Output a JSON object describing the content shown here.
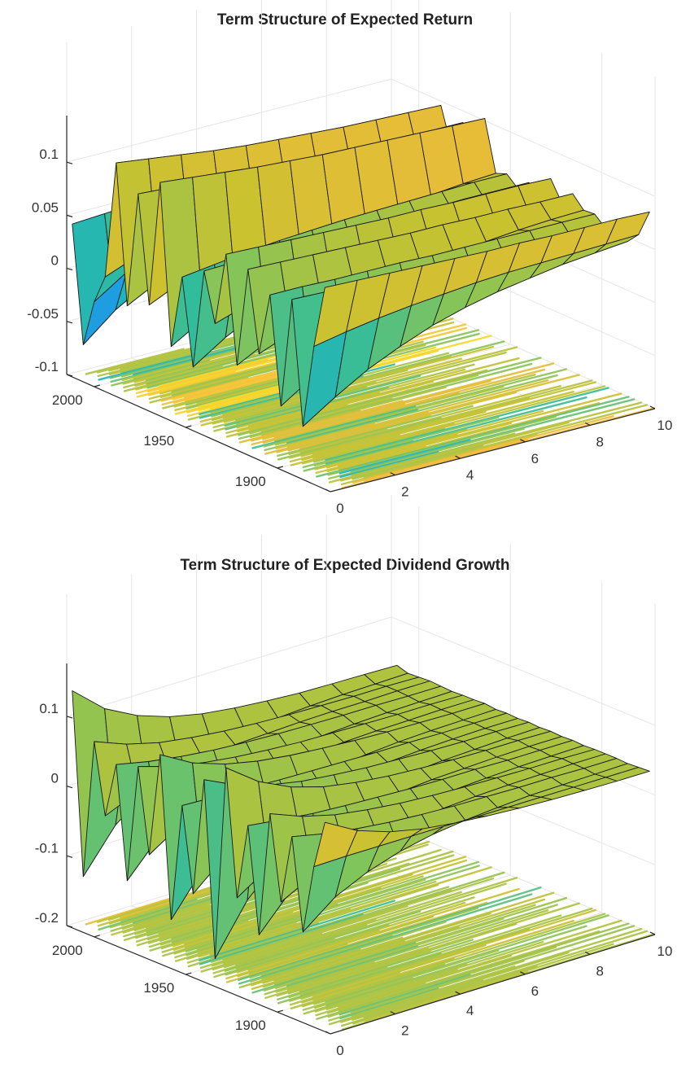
{
  "colormap": [
    "#3e26a8",
    "#4743f8",
    "#2f84f6",
    "#14b0d2",
    "#32bc9b",
    "#83c45a",
    "#c8c22f",
    "#f5ba3c",
    "#f6e11d",
    "#f9fb15"
  ],
  "chart_data": [
    {
      "type": "surface3d",
      "title": "Term Structure of Expected Return",
      "xlabel": "",
      "ylabel": "",
      "zlabel": "",
      "x_ticks": [
        "0",
        "2",
        "4",
        "6",
        "8",
        "10"
      ],
      "y_ticks": [
        "1900",
        "1950",
        "2000"
      ],
      "z_ticks": [
        "-0.1",
        "-0.05",
        "0",
        "0.05",
        "0.1"
      ],
      "xlim": [
        0,
        10
      ],
      "ylim": [
        1871,
        2015
      ],
      "zlim": [
        -0.1,
        0.14
      ],
      "grid": true,
      "projection_floor": true,
      "series": [
        {
          "y": 2012,
          "values": [
            0.044,
            0.046,
            0.048,
            0.05,
            0.051,
            0.052,
            0.053,
            0.054,
            0.054,
            0.055,
            0.055
          ]
        },
        {
          "y": 2006,
          "values": [
            -0.065,
            -0.04,
            -0.022,
            -0.008,
            0.004,
            0.014,
            0.022,
            0.028,
            0.034,
            0.038,
            0.042
          ]
        },
        {
          "y": 2000,
          "values": [
            -0.02,
            0.0,
            0.015,
            0.027,
            0.036,
            0.043,
            0.048,
            0.052,
            0.055,
            0.057,
            0.059
          ]
        },
        {
          "y": 1994,
          "values": [
            0.008,
            0.02,
            0.03,
            0.037,
            0.043,
            0.048,
            0.051,
            0.054,
            0.056,
            0.058,
            0.06
          ]
        },
        {
          "y": 1988,
          "values": [
            0.12,
            0.116,
            0.112,
            0.108,
            0.105,
            0.103,
            0.101,
            0.099,
            0.098,
            0.097,
            0.096
          ]
        },
        {
          "y": 1982,
          "values": [
            -0.01,
            0.006,
            0.02,
            0.03,
            0.038,
            0.044,
            0.049,
            0.053,
            0.056,
            0.058,
            0.06
          ]
        },
        {
          "y": 1976,
          "values": [
            0.1,
            0.098,
            0.096,
            0.094,
            0.093,
            0.092,
            0.091,
            0.09,
            0.09,
            0.089,
            0.089
          ]
        },
        {
          "y": 1970,
          "values": [
            0.0,
            0.014,
            0.026,
            0.035,
            0.042,
            0.047,
            0.051,
            0.054,
            0.057,
            0.059,
            0.061
          ]
        },
        {
          "y": 1964,
          "values": [
            0.12,
            0.117,
            0.114,
            0.111,
            0.109,
            0.107,
            0.106,
            0.105,
            0.104,
            0.103,
            0.102
          ]
        },
        {
          "y": 1958,
          "values": [
            -0.03,
            -0.012,
            0.004,
            0.017,
            0.027,
            0.035,
            0.041,
            0.046,
            0.05,
            0.053,
            0.055
          ]
        },
        {
          "y": 1952,
          "values": [
            0.04,
            0.044,
            0.048,
            0.051,
            0.053,
            0.055,
            0.056,
            0.057,
            0.058,
            0.059,
            0.059
          ]
        },
        {
          "y": 1946,
          "values": [
            -0.04,
            -0.02,
            -0.004,
            0.009,
            0.02,
            0.028,
            0.035,
            0.04,
            0.044,
            0.047,
            0.05
          ]
        },
        {
          "y": 1940,
          "values": [
            0.055,
            0.056,
            0.057,
            0.058,
            0.058,
            0.059,
            0.059,
            0.059,
            0.06,
            0.06,
            0.06
          ]
        },
        {
          "y": 1934,
          "values": [
            0.01,
            0.02,
            0.029,
            0.036,
            0.042,
            0.047,
            0.05,
            0.053,
            0.055,
            0.057,
            0.058
          ]
        },
        {
          "y": 1928,
          "values": [
            0.08,
            0.079,
            0.078,
            0.077,
            0.076,
            0.075,
            0.075,
            0.074,
            0.074,
            0.074,
            0.073
          ]
        },
        {
          "y": 1922,
          "values": [
            -0.02,
            -0.004,
            0.01,
            0.022,
            0.031,
            0.038,
            0.043,
            0.047,
            0.05,
            0.053,
            0.055
          ]
        },
        {
          "y": 1916,
          "values": [
            0.075,
            0.074,
            0.073,
            0.072,
            0.071,
            0.07,
            0.07,
            0.069,
            0.069,
            0.068,
            0.068
          ]
        },
        {
          "y": 1910,
          "values": [
            0.0,
            0.012,
            0.023,
            0.032,
            0.039,
            0.044,
            0.048,
            0.051,
            0.054,
            0.056,
            0.057
          ]
        },
        {
          "y": 1904,
          "values": [
            0.06,
            0.06,
            0.059,
            0.059,
            0.059,
            0.058,
            0.058,
            0.058,
            0.058,
            0.058,
            0.058
          ]
        },
        {
          "y": 1898,
          "values": [
            -0.04,
            -0.02,
            -0.004,
            0.009,
            0.02,
            0.028,
            0.034,
            0.039,
            0.043,
            0.046,
            0.049
          ]
        },
        {
          "y": 1892,
          "values": [
            0.065,
            0.064,
            0.063,
            0.063,
            0.062,
            0.062,
            0.061,
            0.061,
            0.061,
            0.061,
            0.061
          ]
        },
        {
          "y": 1886,
          "values": [
            -0.05,
            -0.03,
            -0.012,
            0.002,
            0.014,
            0.023,
            0.03,
            0.035,
            0.04,
            0.043,
            0.046
          ]
        },
        {
          "y": 1880,
          "values": [
            0.03,
            0.036,
            0.041,
            0.045,
            0.048,
            0.051,
            0.053,
            0.054,
            0.055,
            0.056,
            0.057
          ]
        },
        {
          "y": 1874,
          "values": [
            0.09,
            0.089,
            0.088,
            0.087,
            0.086,
            0.085,
            0.085,
            0.084,
            0.084,
            0.084,
            0.083
          ]
        }
      ]
    },
    {
      "type": "surface3d",
      "title": "Term Structure of Expected Dividend Growth",
      "xlabel": "",
      "ylabel": "",
      "zlabel": "",
      "x_ticks": [
        "0",
        "2",
        "4",
        "6",
        "8",
        "10"
      ],
      "y_ticks": [
        "1900",
        "1950",
        "2000"
      ],
      "z_ticks": [
        "-0.2",
        "-0.1",
        "0",
        "0.1"
      ],
      "xlim": [
        0,
        10
      ],
      "ylim": [
        1871,
        2015
      ],
      "zlim": [
        -0.2,
        0.17
      ],
      "grid": true,
      "projection_floor": true,
      "series": [
        {
          "y": 2012,
          "values": [
            0.14,
            0.1,
            0.076,
            0.06,
            0.05,
            0.044,
            0.04,
            0.037,
            0.036,
            0.035,
            0.034
          ]
        },
        {
          "y": 2006,
          "values": [
            -0.12,
            -0.06,
            -0.025,
            -0.004,
            0.009,
            0.017,
            0.022,
            0.025,
            0.027,
            0.028,
            0.029
          ]
        },
        {
          "y": 2000,
          "values": [
            0.08,
            0.062,
            0.05,
            0.043,
            0.038,
            0.035,
            0.033,
            0.032,
            0.031,
            0.031,
            0.03
          ]
        },
        {
          "y": 1994,
          "values": [
            -0.02,
            0.0,
            0.013,
            0.02,
            0.025,
            0.027,
            0.029,
            0.03,
            0.03,
            0.031,
            0.031
          ]
        },
        {
          "y": 1988,
          "values": [
            0.06,
            0.05,
            0.043,
            0.038,
            0.035,
            0.033,
            0.032,
            0.031,
            0.031,
            0.03,
            0.03
          ]
        },
        {
          "y": 1982,
          "values": [
            -0.1,
            -0.05,
            -0.02,
            -0.002,
            0.01,
            0.017,
            0.022,
            0.025,
            0.027,
            0.028,
            0.029
          ]
        },
        {
          "y": 1976,
          "values": [
            0.07,
            0.056,
            0.047,
            0.041,
            0.037,
            0.034,
            0.033,
            0.032,
            0.031,
            0.031,
            0.03
          ]
        },
        {
          "y": 1970,
          "values": [
            -0.05,
            -0.02,
            -0.002,
            0.01,
            0.018,
            0.023,
            0.026,
            0.028,
            0.029,
            0.03,
            0.03
          ]
        },
        {
          "y": 1964,
          "values": [
            0.1,
            0.074,
            0.058,
            0.048,
            0.042,
            0.038,
            0.035,
            0.033,
            0.032,
            0.031,
            0.031
          ]
        },
        {
          "y": 1958,
          "values": [
            -0.13,
            -0.07,
            -0.032,
            -0.008,
            0.007,
            0.016,
            0.021,
            0.025,
            0.027,
            0.028,
            0.029
          ]
        },
        {
          "y": 1952,
          "values": [
            0.04,
            0.038,
            0.036,
            0.034,
            0.033,
            0.032,
            0.031,
            0.031,
            0.03,
            0.03,
            0.03
          ]
        },
        {
          "y": 1946,
          "values": [
            -0.08,
            -0.04,
            -0.014,
            0.003,
            0.013,
            0.019,
            0.023,
            0.026,
            0.028,
            0.029,
            0.029
          ]
        },
        {
          "y": 1940,
          "values": [
            0.09,
            0.068,
            0.054,
            0.045,
            0.04,
            0.036,
            0.034,
            0.032,
            0.031,
            0.031,
            0.03
          ]
        },
        {
          "y": 1934,
          "values": [
            -0.16,
            -0.09,
            -0.045,
            -0.017,
            0.002,
            0.013,
            0.02,
            0.024,
            0.026,
            0.028,
            0.029
          ]
        },
        {
          "y": 1928,
          "values": [
            0.12,
            0.086,
            0.064,
            0.05,
            0.042,
            0.037,
            0.034,
            0.032,
            0.031,
            0.031,
            0.03
          ]
        },
        {
          "y": 1922,
          "values": [
            -0.06,
            -0.03,
            -0.01,
            0.005,
            0.014,
            0.02,
            0.024,
            0.026,
            0.028,
            0.029,
            0.029
          ]
        },
        {
          "y": 1916,
          "values": [
            0.05,
            0.044,
            0.039,
            0.036,
            0.034,
            0.032,
            0.031,
            0.031,
            0.03,
            0.03,
            0.03
          ]
        },
        {
          "y": 1910,
          "values": [
            -0.1,
            -0.05,
            -0.02,
            -0.002,
            0.01,
            0.017,
            0.022,
            0.025,
            0.027,
            0.028,
            0.029
          ]
        },
        {
          "y": 1904,
          "values": [
            0.08,
            0.062,
            0.05,
            0.043,
            0.038,
            0.035,
            0.033,
            0.032,
            0.031,
            0.031,
            0.03
          ]
        },
        {
          "y": 1898,
          "values": [
            -0.04,
            -0.016,
            0.0,
            0.011,
            0.018,
            0.023,
            0.026,
            0.028,
            0.029,
            0.03,
            0.03
          ]
        },
        {
          "y": 1892,
          "values": [
            0.06,
            0.05,
            0.043,
            0.038,
            0.035,
            0.033,
            0.032,
            0.031,
            0.031,
            0.03,
            0.03
          ]
        },
        {
          "y": 1886,
          "values": [
            -0.07,
            -0.034,
            -0.012,
            0.003,
            0.013,
            0.019,
            0.023,
            0.026,
            0.027,
            0.028,
            0.029
          ]
        },
        {
          "y": 1880,
          "values": [
            0.03,
            0.031,
            0.031,
            0.031,
            0.031,
            0.03,
            0.03,
            0.03,
            0.03,
            0.03,
            0.03
          ]
        },
        {
          "y": 1874,
          "values": [
            0.1,
            0.074,
            0.058,
            0.048,
            0.042,
            0.038,
            0.035,
            0.033,
            0.032,
            0.031,
            0.031
          ]
        }
      ]
    }
  ]
}
